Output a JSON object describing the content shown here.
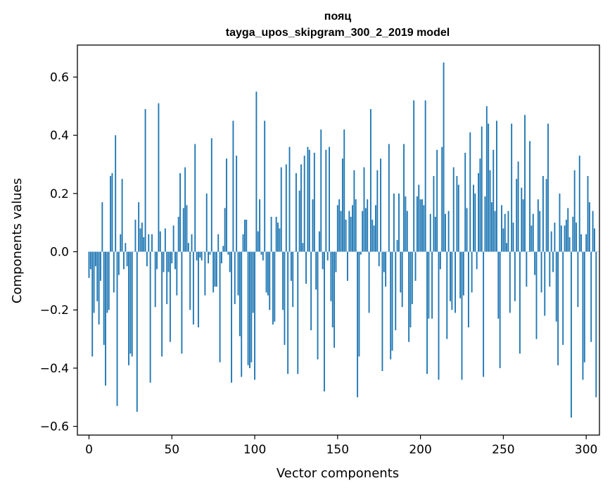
{
  "chart_data": {
    "type": "bar",
    "title": "пояц",
    "subtitle": "tayga_upos_skipgram_300_2_2019 model",
    "xlabel": "Vector components",
    "ylabel": "Components values",
    "xlim": [
      -7,
      308
    ],
    "ylim": [
      -0.63,
      0.71
    ],
    "xticks": [
      0,
      50,
      100,
      150,
      200,
      250,
      300
    ],
    "xtick_labels": [
      "0",
      "50",
      "100",
      "150",
      "200",
      "250",
      "300"
    ],
    "yticks": [
      -0.6,
      -0.4,
      -0.2,
      0.0,
      0.2,
      0.4,
      0.6
    ],
    "ytick_labels": [
      "−0.6",
      "−0.4",
      "−0.2",
      "0.0",
      "0.2",
      "0.4",
      "0.6"
    ],
    "bar_color": "#1f77b4",
    "values": [
      -0.09,
      -0.06,
      -0.36,
      -0.21,
      -0.05,
      -0.17,
      -0.25,
      -0.1,
      0.17,
      -0.32,
      -0.46,
      -0.21,
      -0.2,
      0.26,
      0.27,
      -0.14,
      0.4,
      -0.53,
      -0.08,
      0.06,
      0.25,
      -0.06,
      0.03,
      -0.05,
      -0.39,
      -0.35,
      -0.36,
      0.0,
      0.11,
      -0.55,
      0.17,
      0.08,
      0.1,
      0.05,
      0.49,
      -0.05,
      0.06,
      -0.45,
      0.06,
      0.0,
      -0.19,
      -0.06,
      0.51,
      0.07,
      -0.36,
      -0.07,
      0.08,
      -0.18,
      -0.07,
      -0.31,
      -0.04,
      0.09,
      -0.06,
      -0.15,
      0.12,
      0.27,
      -0.35,
      0.15,
      0.29,
      0.16,
      0.03,
      -0.2,
      0.06,
      -0.25,
      0.37,
      -0.03,
      -0.26,
      -0.02,
      -0.03,
      0.0,
      -0.15,
      0.2,
      -0.04,
      -0.01,
      0.39,
      -0.14,
      -0.12,
      -0.12,
      0.06,
      -0.38,
      -0.04,
      0.02,
      0.15,
      0.32,
      -0.01,
      -0.07,
      -0.45,
      0.45,
      -0.18,
      0.33,
      -0.15,
      -0.29,
      -0.43,
      0.06,
      0.11,
      0.11,
      -0.39,
      -0.4,
      -0.38,
      -0.21,
      -0.44,
      0.55,
      0.07,
      0.18,
      -0.01,
      -0.03,
      0.45,
      -0.14,
      -0.15,
      -0.2,
      0.12,
      -0.25,
      -0.24,
      0.12,
      0.1,
      0.08,
      0.29,
      -0.2,
      -0.32,
      0.3,
      -0.42,
      0.36,
      -0.1,
      -0.19,
      0.0,
      0.27,
      -0.42,
      0.21,
      0.3,
      0.03,
      0.33,
      -0.11,
      0.36,
      0.35,
      -0.27,
      0.18,
      0.34,
      -0.13,
      -0.37,
      0.07,
      0.42,
      -0.06,
      -0.48,
      0.35,
      -0.03,
      0.36,
      -0.17,
      -0.26,
      -0.33,
      -0.07,
      0.16,
      0.18,
      0.14,
      0.32,
      0.42,
      0.11,
      -0.1,
      0.14,
      0.12,
      0.16,
      0.28,
      0.18,
      -0.5,
      -0.36,
      -0.01,
      0.14,
      0.29,
      0.15,
      0.18,
      -0.21,
      0.49,
      0.11,
      0.09,
      0.16,
      0.28,
      -0.05,
      0.32,
      -0.41,
      -0.07,
      -0.12,
      0.0,
      0.37,
      -0.37,
      -0.34,
      0.2,
      -0.27,
      0.04,
      0.2,
      -0.14,
      -0.19,
      0.37,
      0.19,
      0.14,
      -0.31,
      -0.26,
      -0.18,
      0.52,
      -0.1,
      0.19,
      0.23,
      0.18,
      0.18,
      0.16,
      0.52,
      -0.42,
      -0.23,
      0.13,
      -0.23,
      0.26,
      0.12,
      0.35,
      -0.44,
      -0.06,
      0.36,
      0.65,
      0.13,
      -0.3,
      0.14,
      -0.17,
      -0.2,
      0.29,
      -0.21,
      0.26,
      0.23,
      -0.16,
      -0.44,
      -0.15,
      0.34,
      0.15,
      -0.26,
      0.41,
      -0.14,
      0.23,
      0.2,
      -0.06,
      0.27,
      0.32,
      0.43,
      -0.43,
      0.19,
      0.5,
      0.44,
      0.28,
      0.17,
      0.35,
      0.14,
      0.45,
      -0.23,
      -0.4,
      0.16,
      0.08,
      0.13,
      0.03,
      0.14,
      -0.21,
      0.44,
      0.1,
      -0.17,
      0.25,
      0.31,
      -0.35,
      0.22,
      0.18,
      0.47,
      -0.12,
      0.0,
      0.38,
      0.09,
      0.13,
      -0.08,
      -0.3,
      0.18,
      0.14,
      -0.14,
      0.26,
      -0.22,
      0.25,
      0.44,
      -0.12,
      0.07,
      -0.07,
      0.1,
      -0.24,
      -0.39,
      0.2,
      0.09,
      -0.32,
      0.09,
      0.11,
      0.15,
      0.05,
      -0.57,
      0.12,
      0.28,
      0.1,
      -0.19,
      0.33,
      0.06,
      -0.44,
      -0.38,
      0.06,
      0.26,
      0.17,
      -0.31,
      0.14,
      0.08,
      -0.5,
      0.0
    ]
  }
}
